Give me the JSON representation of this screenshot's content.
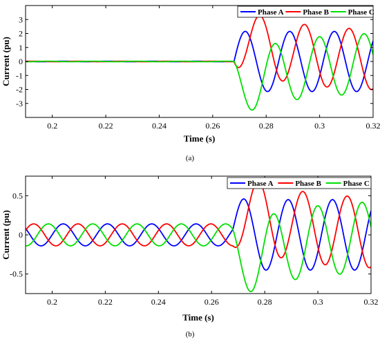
{
  "chart_data": [
    {
      "type": "line",
      "panel_label": "(a)",
      "xlabel": "Time (s)",
      "ylabel": "Current (pu)",
      "xlim": [
        0.19,
        0.32
      ],
      "ylim": [
        -4,
        4
      ],
      "x_ticks": [
        "0.2",
        "0.22",
        "0.24",
        "0.26",
        "0.28",
        "0.3",
        "0.32"
      ],
      "y_ticks": [
        "-3",
        "-2",
        "-1",
        "0",
        "1",
        "2",
        "3"
      ],
      "legend_position": "top-right",
      "grid": false,
      "frequency_hz": 60,
      "fault_time_s": 0.268,
      "series": [
        {
          "name": "Phase A",
          "color": "#0000ff",
          "pre_fault_amplitude": 0.02,
          "post_fault_amplitude": 2.15,
          "phase_deg": 0
        },
        {
          "name": "Phase B",
          "color": "#ff0000",
          "pre_fault_amplitude": 0.02,
          "post_fault_amplitude": 2.15,
          "phase_deg": -120
        },
        {
          "name": "Phase C",
          "color": "#00e000",
          "pre_fault_amplitude": 0.02,
          "post_fault_amplitude": 2.15,
          "phase_deg": 120
        }
      ],
      "annotations": {
        "peak_phase_b": 2.85,
        "trough_phase_c": -3.15
      }
    },
    {
      "type": "line",
      "panel_label": "(b)",
      "xlabel": "Time (s)",
      "ylabel": "Current (pu)",
      "xlim": [
        0.19,
        0.32
      ],
      "ylim": [
        -0.75,
        0.75
      ],
      "x_ticks": [
        "0.2",
        "0.22",
        "0.24",
        "0.26",
        "0.28",
        "0.3",
        "0.32"
      ],
      "y_ticks": [
        "-0.5",
        "0",
        "0.5"
      ],
      "legend_position": "top-right",
      "grid": false,
      "frequency_hz": 60,
      "fault_time_s": 0.268,
      "series": [
        {
          "name": "Phase A",
          "color": "#0000ff",
          "pre_fault_amplitude": 0.14,
          "post_fault_amplitude": 0.45,
          "phase_deg": 0
        },
        {
          "name": "Phase B",
          "color": "#ff0000",
          "pre_fault_amplitude": 0.14,
          "post_fault_amplitude": 0.45,
          "phase_deg": -120
        },
        {
          "name": "Phase C",
          "color": "#00e000",
          "pre_fault_amplitude": 0.14,
          "post_fault_amplitude": 0.45,
          "phase_deg": 120
        }
      ],
      "annotations": {
        "peak_phase_b": 0.5,
        "trough_phase_c": -0.53
      }
    }
  ]
}
